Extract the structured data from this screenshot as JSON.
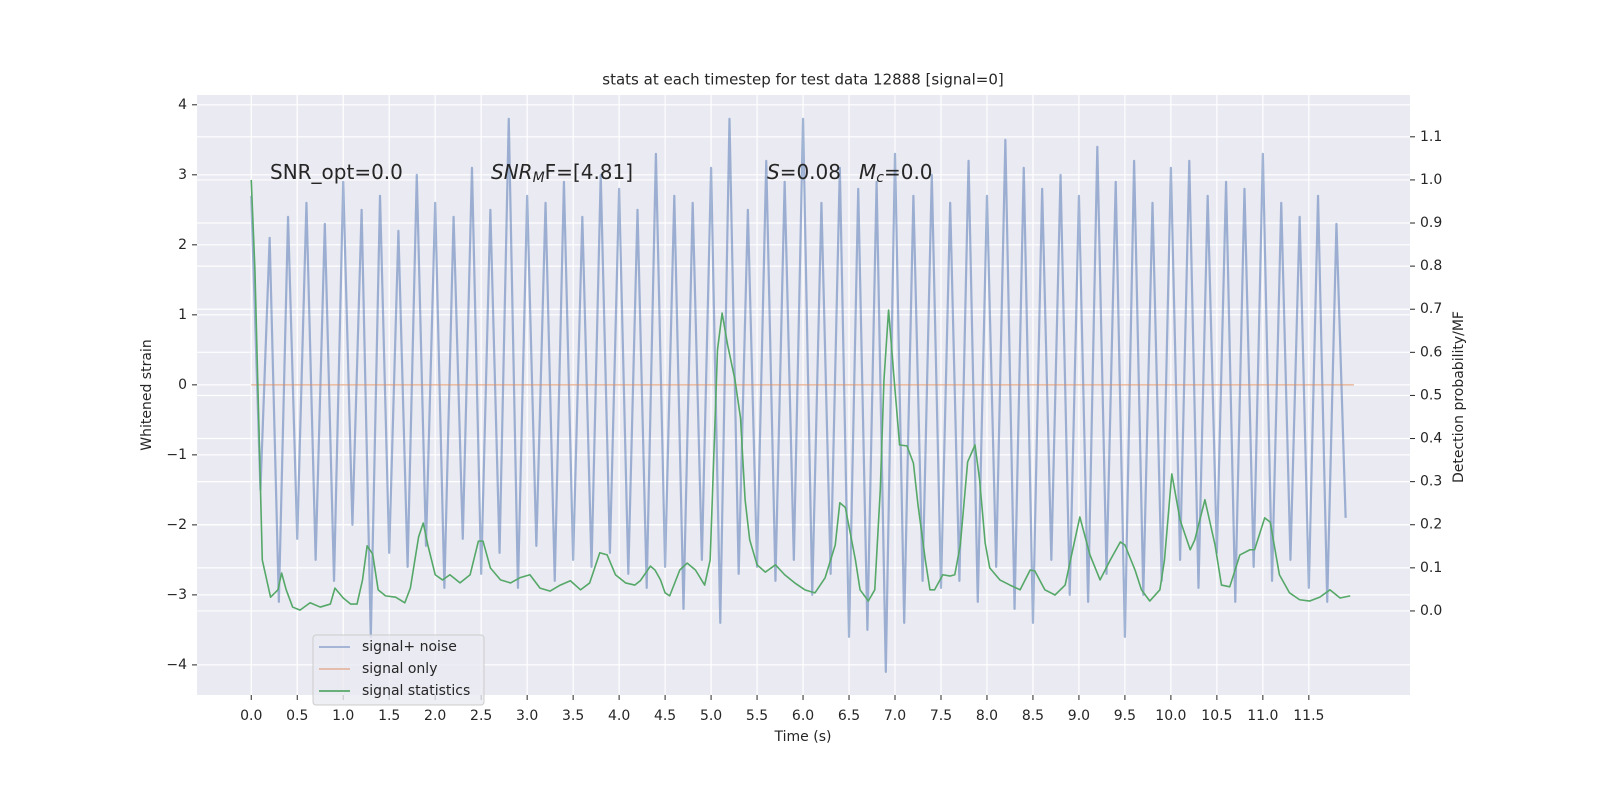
{
  "chart_data": {
    "type": "line",
    "title": "stats at each timestep for test data 12888 [signal=0]",
    "x_label": "Time (s)",
    "y_label": "Whitened strain",
    "y2_label": "Detection probability/MF",
    "annotations": [
      {
        "parts": [
          "SNR_opt=0.0"
        ]
      },
      {
        "parts": [
          "SNR",
          "M",
          "F=[4.81]"
        ]
      },
      {
        "parts": [
          "S",
          "=0.08"
        ]
      },
      {
        "parts": [
          "M",
          "c",
          "=0.0"
        ]
      }
    ],
    "xlim": [
      -0.59,
      12.6
    ],
    "ylim": [
      -4.43,
      4.14
    ],
    "y2lim": [
      -0.195,
      1.197
    ],
    "xticks": [
      {
        "value": 0,
        "label": "0.0"
      },
      0.5,
      {
        "value": 1,
        "label": "1.0"
      },
      1.5,
      {
        "value": 2,
        "label": "2.0"
      },
      2.5,
      {
        "value": 3,
        "label": "3.0"
      },
      3.5,
      {
        "value": 4,
        "label": "4.0"
      },
      4.5,
      {
        "value": 5,
        "label": "5.0"
      },
      5.5,
      {
        "value": 6,
        "label": "6.0"
      },
      6.5,
      {
        "value": 7,
        "label": "7.0"
      },
      7.5,
      {
        "value": 8,
        "label": "8.0"
      },
      8.5,
      {
        "value": 9,
        "label": "9.0"
      },
      9.5,
      {
        "value": 10,
        "label": "10.0"
      },
      10.5,
      {
        "value": 11,
        "label": "11.0"
      },
      11.5
    ],
    "yticks": [
      {
        "value": -4,
        "label": "−4"
      },
      {
        "value": -3,
        "label": "−3"
      },
      {
        "value": -2,
        "label": "−2"
      },
      {
        "value": -1,
        "label": "−1"
      },
      0,
      1,
      2,
      3,
      4
    ],
    "y2ticks": [
      {
        "value": 0,
        "label": "0.0"
      },
      0.1,
      0.2,
      0.3,
      0.4,
      0.5,
      0.6,
      0.7,
      0.8,
      0.9,
      {
        "value": 1,
        "label": "1.0"
      },
      1.1
    ],
    "grid": true,
    "legend": "lower left",
    "series": [
      {
        "name": "signal+ noise",
        "color": "#4c72b0",
        "opacity": 0.5,
        "x": [
          0,
          0.1,
          0.2,
          0.3,
          0.4,
          0.5,
          0.6,
          0.7,
          0.8,
          0.9,
          1,
          1.1,
          1.2,
          1.3,
          1.4,
          1.5,
          1.6,
          1.7,
          1.8,
          1.9,
          2,
          2.1,
          2.2,
          2.3,
          2.4,
          2.5,
          2.6,
          2.7,
          2.8,
          2.9,
          3,
          3.1,
          3.2,
          3.3,
          3.4,
          3.5,
          3.6,
          3.7,
          3.8,
          3.9,
          4,
          4.1,
          4.2,
          4.3,
          4.4,
          4.5,
          4.6,
          4.7,
          4.8,
          4.9,
          5,
          5.1,
          5.2,
          5.3,
          5.4,
          5.5,
          5.6,
          5.7,
          5.8,
          5.9,
          6,
          6.1,
          6.2,
          6.3,
          6.4,
          6.5,
          6.6,
          6.7,
          6.8,
          6.9,
          7,
          7.1,
          7.2,
          7.3,
          7.4,
          7.5,
          7.6,
          7.7,
          7.8,
          7.9,
          8,
          8.1,
          8.2,
          8.3,
          8.4,
          8.5,
          8.6,
          8.7,
          8.8,
          8.9,
          9,
          9.1,
          9.2,
          9.3,
          9.4,
          9.5,
          9.6,
          9.7,
          9.8,
          9.9,
          10,
          10.1,
          10.2,
          10.3,
          10.4,
          10.5,
          10.6,
          10.7,
          10.8,
          10.9,
          11,
          11.1,
          11.2,
          11.3,
          11.4,
          11.5,
          11.6,
          11.7,
          11.8,
          11.9
        ],
        "values": [
          2.7,
          -1.5,
          2.1,
          -3.1,
          2.4,
          -2.2,
          2.6,
          -2.5,
          2.3,
          -2.8,
          2.9,
          -2.0,
          2.5,
          -3.6,
          2.7,
          -2.4,
          2.2,
          -2.6,
          3.0,
          -2.3,
          2.6,
          -2.9,
          2.4,
          -2.2,
          3.1,
          -2.7,
          2.5,
          -2.4,
          3.8,
          -2.9,
          2.7,
          -2.3,
          2.6,
          -2.8,
          2.9,
          -2.5,
          2.4,
          -2.6,
          3.0,
          -2.4,
          2.8,
          -2.7,
          2.5,
          -2.9,
          3.3,
          -2.6,
          2.7,
          -3.2,
          2.6,
          -2.5,
          3.1,
          -3.4,
          3.8,
          -2.7,
          2.5,
          -2.6,
          3.2,
          -2.8,
          2.9,
          -2.5,
          3.8,
          -3.0,
          2.6,
          -2.7,
          3.1,
          -3.6,
          2.8,
          -3.5,
          2.9,
          -4.1,
          3.3,
          -3.4,
          2.7,
          -2.8,
          3.0,
          -2.9,
          2.6,
          -2.8,
          3.2,
          -3.1,
          2.7,
          -2.6,
          3.5,
          -3.2,
          3.1,
          -3.4,
          2.8,
          -2.5,
          3.0,
          -3.0,
          2.7,
          -3.1,
          3.4,
          -2.7,
          2.9,
          -3.6,
          3.2,
          -3.0,
          2.6,
          -2.8,
          3.1,
          -2.5,
          3.2,
          -2.9,
          2.7,
          -2.4,
          2.9,
          -3.1,
          2.8,
          -2.6,
          3.3,
          -2.8,
          2.6,
          -2.5,
          2.4,
          -2.9,
          2.7,
          -3.1,
          2.3,
          -1.9
        ]
      },
      {
        "name": "signal only",
        "color": "#dd8452",
        "opacity": 0.5,
        "x": [
          0,
          11.99
        ],
        "values": [
          0,
          0
        ]
      },
      {
        "name": "signal statistics",
        "color": "#55a868",
        "opacity": 1,
        "axis": "y2",
        "x": [
          0,
          0.04,
          0.12,
          0.21,
          0.29,
          0.33,
          0.38,
          0.45,
          0.53,
          0.64,
          0.75,
          0.86,
          0.91,
          1,
          1.08,
          1.15,
          1.21,
          1.26,
          1.32,
          1.38,
          1.46,
          1.57,
          1.67,
          1.73,
          1.82,
          1.87,
          1.92,
          2,
          2.08,
          2.16,
          2.27,
          2.38,
          2.47,
          2.52,
          2.6,
          2.71,
          2.82,
          2.92,
          3.03,
          3.14,
          3.25,
          3.36,
          3.47,
          3.58,
          3.68,
          3.79,
          3.87,
          3.96,
          4.07,
          4.17,
          4.23,
          4.34,
          4.39,
          4.45,
          4.5,
          4.55,
          4.66,
          4.74,
          4.83,
          4.93,
          4.99,
          5.07,
          5.12,
          5.18,
          5.26,
          5.32,
          5.37,
          5.42,
          5.5,
          5.59,
          5.7,
          5.8,
          5.91,
          6.02,
          6.13,
          6.24,
          6.35,
          6.4,
          6.46,
          6.57,
          6.62,
          6.71,
          6.78,
          6.84,
          6.88,
          6.93,
          7,
          7.05,
          7.13,
          7.2,
          7.25,
          7.33,
          7.38,
          7.43,
          7.52,
          7.6,
          7.65,
          7.71,
          7.79,
          7.87,
          7.92,
          7.98,
          8.03,
          8.14,
          8.25,
          8.36,
          8.47,
          8.52,
          8.63,
          8.74,
          8.85,
          8.92,
          9.01,
          9.12,
          9.23,
          9.34,
          9.45,
          9.5,
          9.61,
          9.68,
          9.77,
          9.88,
          9.93,
          10.01,
          10.1,
          10.21,
          10.26,
          10.37,
          10.48,
          10.55,
          10.64,
          10.75,
          10.86,
          10.91,
          11.02,
          11.08,
          11.18,
          11.29,
          11.4,
          11.51,
          11.62,
          11.73,
          11.84,
          11.95
        ],
        "values": [
          1.0,
          0.79,
          0.118,
          0.032,
          0.049,
          0.088,
          0.049,
          0.009,
          0.002,
          0.019,
          0.009,
          0.016,
          0.053,
          0.03,
          0.016,
          0.016,
          0.072,
          0.151,
          0.132,
          0.049,
          0.035,
          0.032,
          0.019,
          0.053,
          0.172,
          0.204,
          0.153,
          0.084,
          0.072,
          0.084,
          0.065,
          0.084,
          0.162,
          0.162,
          0.1,
          0.072,
          0.065,
          0.077,
          0.084,
          0.053,
          0.046,
          0.06,
          0.07,
          0.049,
          0.065,
          0.135,
          0.13,
          0.084,
          0.065,
          0.06,
          0.07,
          0.104,
          0.095,
          0.072,
          0.042,
          0.035,
          0.095,
          0.111,
          0.095,
          0.06,
          0.118,
          0.606,
          0.691,
          0.617,
          0.536,
          0.448,
          0.258,
          0.165,
          0.107,
          0.09,
          0.107,
          0.084,
          0.065,
          0.049,
          0.042,
          0.077,
          0.153,
          0.251,
          0.24,
          0.118,
          0.049,
          0.023,
          0.049,
          0.281,
          0.536,
          0.698,
          0.513,
          0.385,
          0.383,
          0.343,
          0.246,
          0.118,
          0.049,
          0.049,
          0.084,
          0.081,
          0.084,
          0.153,
          0.346,
          0.385,
          0.304,
          0.158,
          0.1,
          0.072,
          0.06,
          0.049,
          0.095,
          0.093,
          0.049,
          0.037,
          0.06,
          0.13,
          0.218,
          0.13,
          0.072,
          0.118,
          0.16,
          0.153,
          0.095,
          0.049,
          0.023,
          0.049,
          0.118,
          0.318,
          0.211,
          0.142,
          0.165,
          0.258,
          0.153,
          0.06,
          0.056,
          0.13,
          0.142,
          0.142,
          0.216,
          0.206,
          0.084,
          0.042,
          0.026,
          0.023,
          0.032,
          0.049,
          0.03,
          0.035
        ]
      }
    ]
  }
}
